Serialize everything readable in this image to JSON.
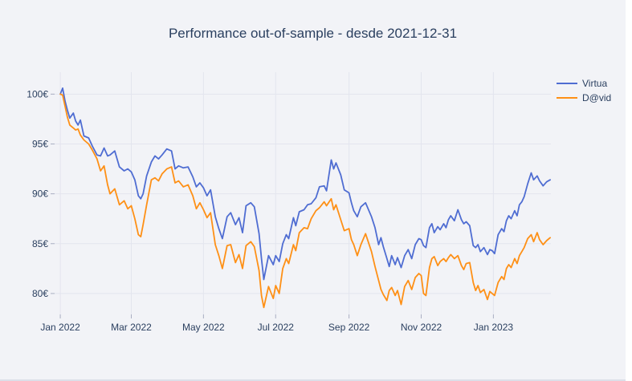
{
  "figure": {
    "title": "Performance out-of-sample - desde 2021-12-31"
  },
  "legend": {
    "items": [
      {
        "label": "Virtua",
        "color": "#4f6dd2"
      },
      {
        "label": "D@vid",
        "color": "#fe9016"
      }
    ]
  },
  "colors": {
    "page": "#ffffff",
    "background": "#f2f3f7",
    "grid": "#e3e5ee",
    "tick": "#a9aec2",
    "text": "#2a3f5f",
    "bottom_edge": "#dcdfe9"
  },
  "chart_data": {
    "type": "line",
    "title": "Performance out-of-sample - desde 2021-12-31",
    "x_unit": "days since 2021-12-31",
    "xlim": [
      -4.8,
      414.6
    ],
    "ylim": [
      77.9,
      102.2
    ],
    "grid": true,
    "legend_position": "top-right",
    "x_ticks": [
      {
        "day": 0,
        "label": "Jan 2022"
      },
      {
        "day": 60,
        "label": "Mar 2022"
      },
      {
        "day": 121,
        "label": "May 2022"
      },
      {
        "day": 182,
        "label": "Jul 2022"
      },
      {
        "day": 244,
        "label": "Sep 2022"
      },
      {
        "day": 305,
        "label": "Nov 2022"
      },
      {
        "day": 366,
        "label": "Jan 2023"
      }
    ],
    "y_ticks": [
      {
        "value": 80,
        "label": "80€"
      },
      {
        "value": 85,
        "label": "85€"
      },
      {
        "value": 90,
        "label": "90€"
      },
      {
        "value": 95,
        "label": "95€"
      },
      {
        "value": 100,
        "label": "100€"
      }
    ],
    "columns": [
      "day",
      "Virtua",
      "D@vid"
    ],
    "series": [
      {
        "name": "Virtua",
        "color": "#4f6dd2",
        "column": 1
      },
      {
        "name": "D@vid",
        "color": "#fe9016",
        "column": 2
      }
    ],
    "points": [
      [
        0,
        100.0,
        100.0
      ],
      [
        2,
        100.6,
        99.9
      ],
      [
        4,
        99.3,
        98.8
      ],
      [
        6,
        98.4,
        97.7
      ],
      [
        8,
        97.6,
        96.9
      ],
      [
        11,
        98.1,
        96.6
      ],
      [
        13,
        97.3,
        96.4
      ],
      [
        15,
        96.9,
        96.5
      ],
      [
        17,
        97.4,
        95.9
      ],
      [
        20,
        95.8,
        95.4
      ],
      [
        24,
        95.6,
        95.0
      ],
      [
        27,
        94.8,
        94.4
      ],
      [
        31,
        93.9,
        93.5
      ],
      [
        34,
        93.8,
        92.3
      ],
      [
        37,
        94.6,
        92.8
      ],
      [
        40,
        93.8,
        90.9
      ],
      [
        42,
        93.9,
        90.0
      ],
      [
        46,
        94.3,
        90.5
      ],
      [
        50,
        92.7,
        88.9
      ],
      [
        54,
        92.3,
        89.3
      ],
      [
        57,
        92.5,
        88.5
      ],
      [
        60,
        92.2,
        88.8
      ],
      [
        63,
        91.4,
        87.5
      ],
      [
        66,
        89.8,
        85.9
      ],
      [
        68,
        89.5,
        85.7
      ],
      [
        70,
        90.0,
        86.9
      ],
      [
        73,
        91.8,
        88.9
      ],
      [
        77,
        93.2,
        91.4
      ],
      [
        80,
        93.8,
        91.6
      ],
      [
        83,
        93.5,
        91.3
      ],
      [
        86,
        93.9,
        92.0
      ],
      [
        90,
        94.5,
        92.5
      ],
      [
        94,
        94.3,
        92.7
      ],
      [
        97,
        92.5,
        91.1
      ],
      [
        100,
        92.8,
        91.3
      ],
      [
        104,
        92.6,
        90.7
      ],
      [
        108,
        92.7,
        90.9
      ],
      [
        112,
        91.7,
        89.8
      ],
      [
        115,
        90.7,
        88.5
      ],
      [
        118,
        91.1,
        89.1
      ],
      [
        121,
        90.6,
        88.4
      ],
      [
        124,
        89.8,
        87.6
      ],
      [
        127,
        90.4,
        88.1
      ],
      [
        131,
        87.7,
        84.9
      ],
      [
        134,
        86.5,
        83.8
      ],
      [
        137,
        85.5,
        82.5
      ],
      [
        141,
        87.7,
        84.8
      ],
      [
        144,
        88.1,
        84.9
      ],
      [
        148,
        86.9,
        83.1
      ],
      [
        151,
        87.6,
        83.9
      ],
      [
        154,
        86.1,
        82.5
      ],
      [
        157,
        88.8,
        84.8
      ],
      [
        161,
        89.1,
        85.2
      ],
      [
        164,
        88.7,
        84.7
      ],
      [
        168,
        86.0,
        82.3
      ],
      [
        170,
        83.5,
        79.8
      ],
      [
        172,
        81.4,
        78.6
      ],
      [
        176,
        83.8,
        80.7
      ],
      [
        180,
        82.9,
        79.5
      ],
      [
        182,
        83.8,
        80.8
      ],
      [
        185,
        83.2,
        80.0
      ],
      [
        188,
        85.0,
        82.5
      ],
      [
        191,
        85.9,
        83.5
      ],
      [
        193,
        85.5,
        83.0
      ],
      [
        197,
        87.6,
        84.9
      ],
      [
        199,
        86.8,
        84.3
      ],
      [
        202,
        88.2,
        86.1
      ],
      [
        206,
        88.4,
        86.6
      ],
      [
        209,
        88.9,
        86.5
      ],
      [
        212,
        89.0,
        87.5
      ],
      [
        216,
        89.6,
        88.3
      ],
      [
        219,
        90.7,
        88.6
      ],
      [
        223,
        90.8,
        89.2
      ],
      [
        225,
        90.3,
        88.8
      ],
      [
        229,
        93.4,
        89.5
      ],
      [
        231,
        92.5,
        88.4
      ],
      [
        233,
        93.1,
        88.9
      ],
      [
        237,
        91.9,
        87.4
      ],
      [
        240,
        90.4,
        86.3
      ],
      [
        244,
        90.1,
        86.5
      ],
      [
        246,
        89.1,
        85.4
      ],
      [
        248,
        88.3,
        84.9
      ],
      [
        251,
        87.7,
        83.8
      ],
      [
        254,
        88.7,
        84.9
      ],
      [
        258,
        89.1,
        86.0
      ],
      [
        263,
        87.7,
        84.2
      ],
      [
        266,
        86.6,
        82.7
      ],
      [
        269,
        84.9,
        81.3
      ],
      [
        271,
        85.6,
        80.4
      ],
      [
        273,
        84.7,
        79.9
      ],
      [
        276,
        83.5,
        79.3
      ],
      [
        278,
        82.7,
        80.3
      ],
      [
        280,
        83.8,
        80.6
      ],
      [
        283,
        82.9,
        79.8
      ],
      [
        285,
        83.6,
        80.3
      ],
      [
        288,
        82.6,
        78.9
      ],
      [
        291,
        83.8,
        80.7
      ],
      [
        294,
        84.4,
        81.3
      ],
      [
        297,
        83.5,
        80.4
      ],
      [
        300,
        84.9,
        81.6
      ],
      [
        303,
        85.5,
        82.0
      ],
      [
        305,
        85.4,
        81.8
      ],
      [
        307,
        84.8,
        80.0
      ],
      [
        309,
        84.6,
        79.8
      ],
      [
        312,
        86.6,
        82.6
      ],
      [
        314,
        87.0,
        83.5
      ],
      [
        316,
        86.1,
        83.7
      ],
      [
        319,
        86.7,
        82.8
      ],
      [
        321,
        86.4,
        83.2
      ],
      [
        324,
        87.0,
        83.5
      ],
      [
        326,
        86.6,
        83.2
      ],
      [
        328,
        87.4,
        83.6
      ],
      [
        330,
        87.8,
        83.9
      ],
      [
        333,
        87.3,
        83.5
      ],
      [
        336,
        88.4,
        83.8
      ],
      [
        339,
        87.4,
        82.8
      ],
      [
        341,
        87.0,
        82.4
      ],
      [
        343,
        87.2,
        83.0
      ],
      [
        346,
        86.8,
        83.1
      ],
      [
        349,
        84.8,
        81.1
      ],
      [
        351,
        84.6,
        80.3
      ],
      [
        353,
        84.9,
        80.8
      ],
      [
        355,
        84.2,
        80.1
      ],
      [
        358,
        84.6,
        80.4
      ],
      [
        361,
        83.9,
        79.4
      ],
      [
        363,
        84.4,
        80.2
      ],
      [
        365,
        84.3,
        80.0
      ],
      [
        367,
        84.0,
        79.8
      ],
      [
        370,
        85.9,
        81.1
      ],
      [
        373,
        86.5,
        81.7
      ],
      [
        375,
        86.2,
        81.4
      ],
      [
        377,
        87.3,
        82.5
      ],
      [
        379,
        87.8,
        82.9
      ],
      [
        381,
        87.5,
        82.6
      ],
      [
        384,
        88.3,
        83.5
      ],
      [
        386,
        87.8,
        83.0
      ],
      [
        388,
        88.9,
        83.8
      ],
      [
        390,
        89.2,
        84.2
      ],
      [
        392,
        89.7,
        84.6
      ],
      [
        395,
        91.0,
        85.5
      ],
      [
        398,
        92.1,
        85.9
      ],
      [
        400,
        91.4,
        85.2
      ],
      [
        403,
        91.8,
        86.1
      ],
      [
        405,
        91.3,
        85.4
      ],
      [
        408,
        90.8,
        84.9
      ],
      [
        411,
        91.2,
        85.3
      ],
      [
        414,
        91.4,
        85.6
      ]
    ]
  }
}
